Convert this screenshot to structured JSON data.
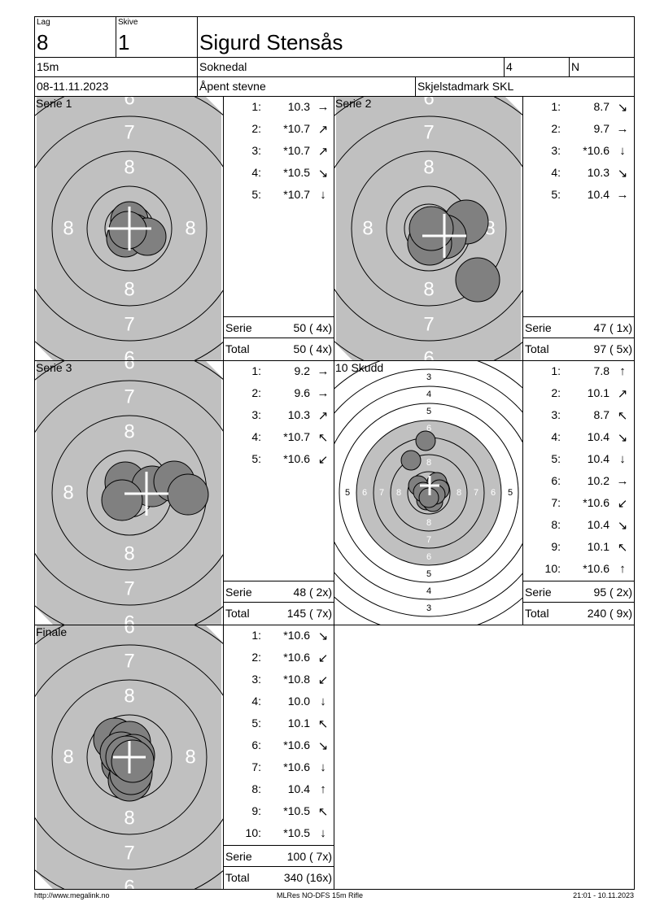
{
  "header": {
    "lag_label": "Lag",
    "lag": "8",
    "skive_label": "Skive",
    "skive": "1",
    "name": "Sigurd Stensås",
    "distance": "15m",
    "club": "Soknedal",
    "field4": "4",
    "class": "N",
    "date": "08-11.11.2023",
    "event": "Åpent stevne",
    "location": "Skjelstadmark SKL"
  },
  "colors": {
    "target_grey": "#c0c0c0",
    "shot": "#808080"
  },
  "target_labels": {
    "serie": {
      "inner": "8",
      "mid": "7",
      "outer": "6"
    },
    "full": [
      "3",
      "4",
      "5",
      "6",
      "7",
      "8"
    ]
  },
  "panels": [
    {
      "title": "Serie 1",
      "shots": [
        {
          "n": "1:",
          "v": "10.3",
          "arrow": "→"
        },
        {
          "n": "2:",
          "v": "*10.7",
          "arrow": "↗"
        },
        {
          "n": "3:",
          "v": "*10.7",
          "arrow": "↗"
        },
        {
          "n": "4:",
          "v": "*10.5",
          "arrow": "↘"
        },
        {
          "n": "5:",
          "v": "*10.7",
          "arrow": "↓"
        }
      ],
      "serie_label": "Serie",
      "serie": "50 ( 4x)",
      "total_label": "Total",
      "total": "50 ( 4x)"
    },
    {
      "title": "Serie 2",
      "shots": [
        {
          "n": "1:",
          "v": "8.7",
          "arrow": "↘"
        },
        {
          "n": "2:",
          "v": "9.7",
          "arrow": "→"
        },
        {
          "n": "3:",
          "v": "*10.6",
          "arrow": "↓"
        },
        {
          "n": "4:",
          "v": "10.3",
          "arrow": "↘"
        },
        {
          "n": "5:",
          "v": "10.4",
          "arrow": "→"
        }
      ],
      "serie_label": "Serie",
      "serie": "47 ( 1x)",
      "total_label": "Total",
      "total": "97 ( 5x)"
    },
    {
      "title": "Serie 3",
      "shots": [
        {
          "n": "1:",
          "v": "9.2",
          "arrow": "→"
        },
        {
          "n": "2:",
          "v": "9.6",
          "arrow": "→"
        },
        {
          "n": "3:",
          "v": "10.3",
          "arrow": "↗"
        },
        {
          "n": "4:",
          "v": "*10.7",
          "arrow": "↖"
        },
        {
          "n": "5:",
          "v": "*10.6",
          "arrow": "↙"
        }
      ],
      "serie_label": "Serie",
      "serie": "48 ( 2x)",
      "total_label": "Total",
      "total": "145 ( 7x)"
    },
    {
      "title": "10 Skudd",
      "shots": [
        {
          "n": "1:",
          "v": "7.8",
          "arrow": "↑"
        },
        {
          "n": "2:",
          "v": "10.1",
          "arrow": "↗"
        },
        {
          "n": "3:",
          "v": "8.7",
          "arrow": "↖"
        },
        {
          "n": "4:",
          "v": "10.4",
          "arrow": "↘"
        },
        {
          "n": "5:",
          "v": "10.4",
          "arrow": "↓"
        },
        {
          "n": "6:",
          "v": "10.2",
          "arrow": "→"
        },
        {
          "n": "7:",
          "v": "*10.6",
          "arrow": "↙"
        },
        {
          "n": "8:",
          "v": "10.4",
          "arrow": "↘"
        },
        {
          "n": "9:",
          "v": "10.1",
          "arrow": "↖"
        },
        {
          "n": "10:",
          "v": "*10.6",
          "arrow": "↑"
        }
      ],
      "serie_label": "Serie",
      "serie": "95 ( 2x)",
      "total_label": "Total",
      "total": "240 ( 9x)"
    },
    {
      "title": "Finale",
      "shots": [
        {
          "n": "1:",
          "v": "*10.6",
          "arrow": "↘"
        },
        {
          "n": "2:",
          "v": "*10.6",
          "arrow": "↙"
        },
        {
          "n": "3:",
          "v": "*10.8",
          "arrow": "↙"
        },
        {
          "n": "4:",
          "v": "10.0",
          "arrow": "↓"
        },
        {
          "n": "5:",
          "v": "10.1",
          "arrow": "↖"
        },
        {
          "n": "6:",
          "v": "*10.6",
          "arrow": "↘"
        },
        {
          "n": "7:",
          "v": "*10.6",
          "arrow": "↓"
        },
        {
          "n": "8:",
          "v": "10.4",
          "arrow": "↑"
        },
        {
          "n": "9:",
          "v": "*10.5",
          "arrow": "↖"
        },
        {
          "n": "10:",
          "v": "*10.5",
          "arrow": "↓"
        }
      ],
      "serie_label": "Serie",
      "serie": "100 ( 7x)",
      "total_label": "Total",
      "total": "340 (16x)"
    }
  ],
  "footer": {
    "left": "http://www.megalink.no",
    "center": "MLRes NO-DFS 15m Rifle",
    "right": "21:01 - 10.11.2023"
  }
}
